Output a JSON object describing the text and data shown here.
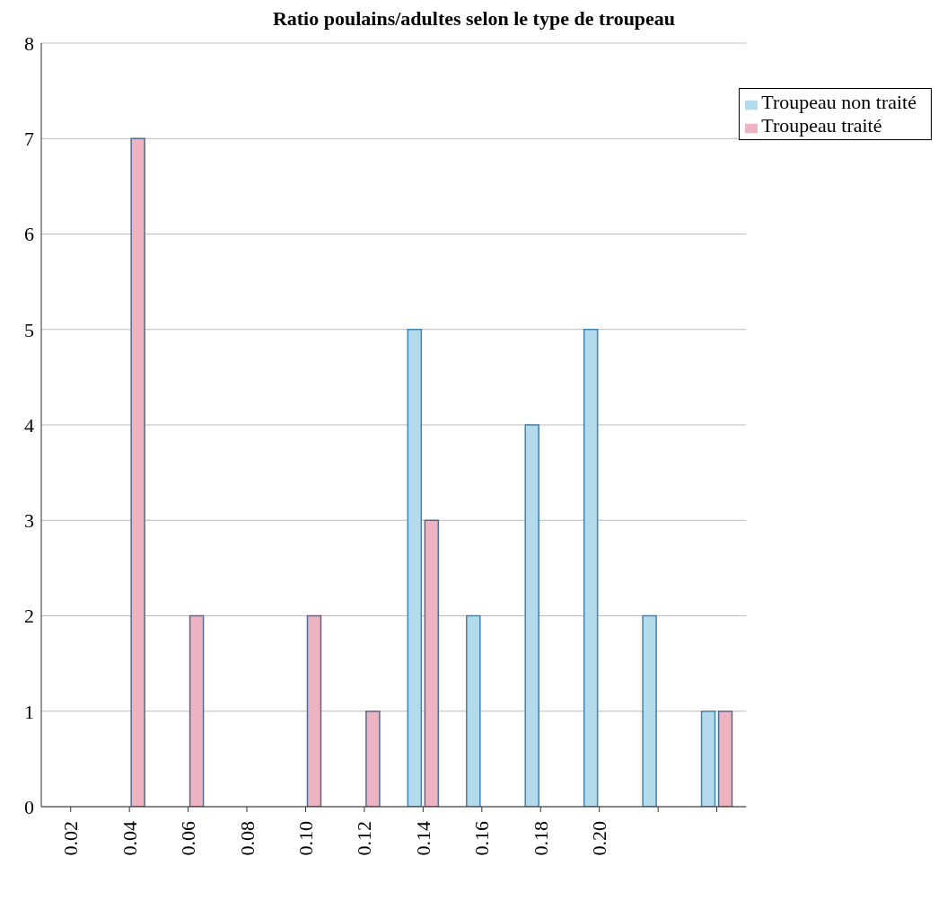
{
  "chart_data": {
    "type": "bar",
    "title": "Ratio poulains/adultes selon le type de troupeau",
    "categories": [
      "0.02",
      "0.04",
      "0.06",
      "0.08",
      "0.10",
      "0.12",
      "0.14",
      "0.16",
      "0.18",
      "0.20",
      null,
      null
    ],
    "series": [
      {
        "name": "Troupeau non traité",
        "color": "#b3dbeb",
        "values": [
          0,
          0,
          0,
          0,
          0,
          0,
          5,
          2,
          4,
          5,
          2,
          1
        ]
      },
      {
        "name": "Troupeau traité",
        "color": "#edb3c1",
        "values": [
          0,
          7,
          2,
          0,
          2,
          1,
          3,
          0,
          0,
          0,
          0,
          1
        ]
      }
    ],
    "ylim": [
      0,
      8
    ],
    "yticks": [
      0,
      1,
      2,
      3,
      4,
      5,
      6,
      7,
      8
    ],
    "grid": "y",
    "legend": "top right"
  }
}
